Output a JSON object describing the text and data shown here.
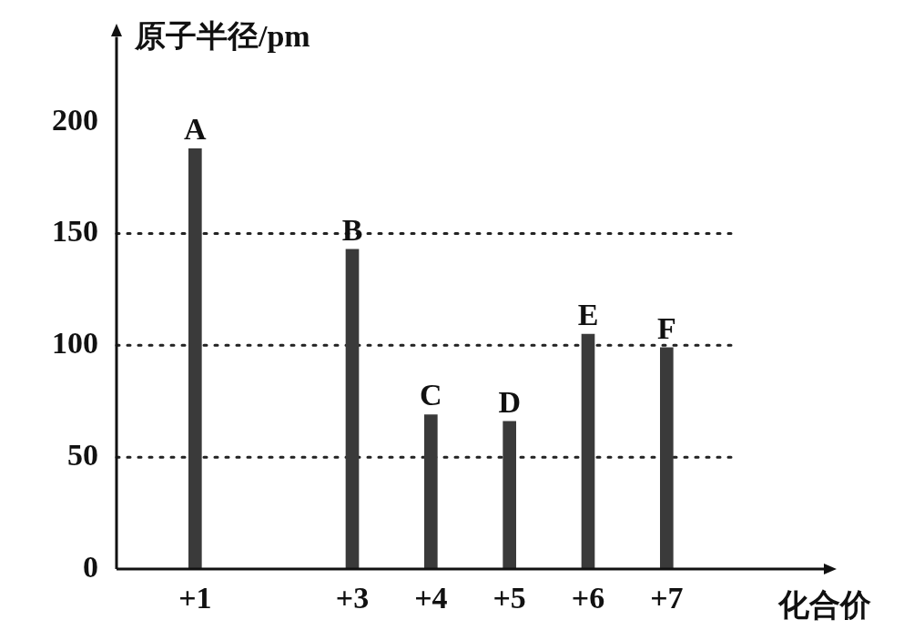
{
  "chart_data": {
    "type": "bar",
    "ylabel": "原子半径/pm",
    "xlabel": "化合价",
    "x": [
      1,
      3,
      4,
      5,
      6,
      7
    ],
    "values": [
      188,
      143,
      69,
      66,
      105,
      99
    ],
    "color": "#3a3a3a",
    "xlim": [
      0,
      9
    ],
    "xticks": [
      {
        "value": 1,
        "label": "+1"
      },
      {
        "value": 3,
        "label": "+3"
      },
      {
        "value": 4,
        "label": "+4"
      },
      {
        "value": 5,
        "label": "+5"
      },
      {
        "value": 6,
        "label": "+6"
      },
      {
        "value": 7,
        "label": "+7"
      }
    ],
    "ylim": [
      0,
      238
    ],
    "yticks": [
      0,
      50,
      100,
      150,
      200
    ],
    "grid": false,
    "legend": false,
    "ref_lines": [
      {
        "axis": "y",
        "value": 50,
        "line_style": "dotted"
      },
      {
        "axis": "y",
        "value": 100,
        "line_style": "dotted"
      },
      {
        "axis": "y",
        "value": 150,
        "line_style": "dotted"
      }
    ],
    "annotations": [
      {
        "text": "A",
        "x": 1,
        "y": 188
      },
      {
        "text": "B",
        "x": 3,
        "y": 143
      },
      {
        "text": "C",
        "x": 4,
        "y": 69
      },
      {
        "text": "D",
        "x": 5,
        "y": 66
      },
      {
        "text": "E",
        "x": 6,
        "y": 105
      },
      {
        "text": "F",
        "x": 7,
        "y": 99
      }
    ]
  }
}
